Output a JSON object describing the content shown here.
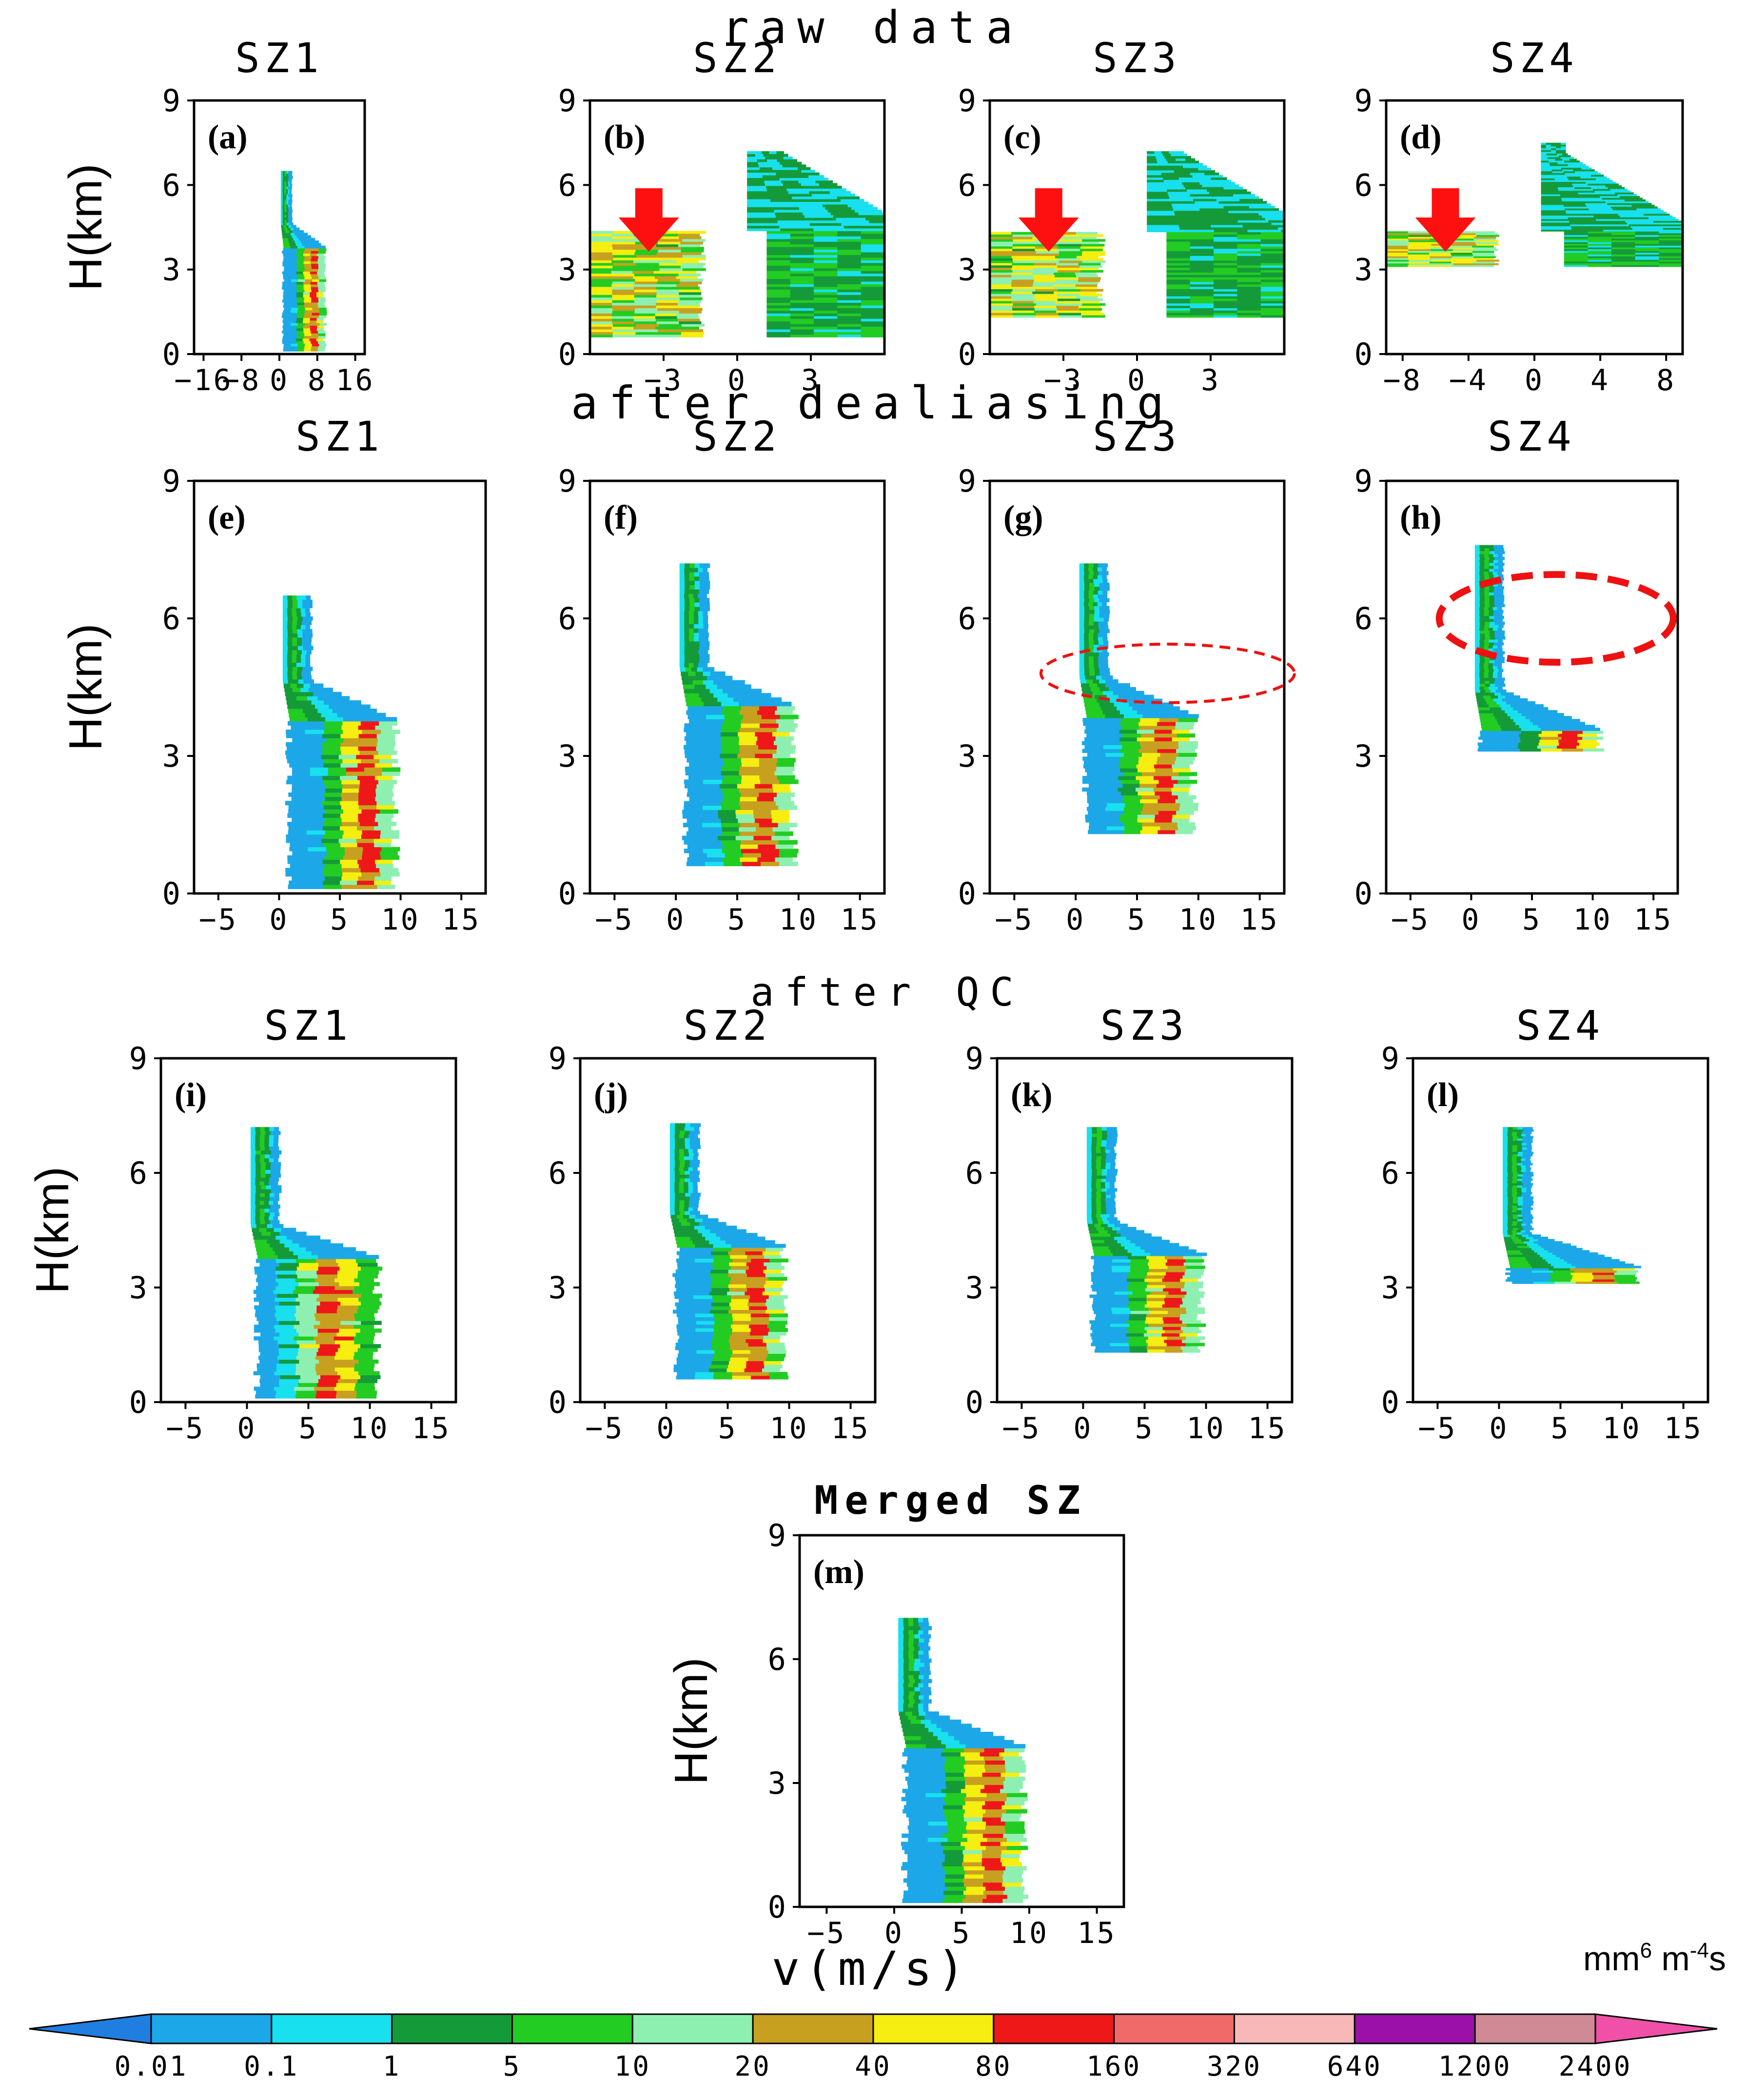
{
  "figure": {
    "x_axis_label": "v(m/s)",
    "y_axis_label": "H(km)"
  },
  "sections": [
    {
      "id": "raw",
      "title": "raw data"
    },
    {
      "id": "dealias",
      "title": "after dealiasing"
    },
    {
      "id": "qc",
      "title": "after QC"
    },
    {
      "id": "merged",
      "title": "Merged SZ"
    }
  ],
  "chart_data": [
    {
      "type": "heatmap",
      "panel": "(a)",
      "section": "raw data",
      "title": "SZ1",
      "ylabel": "H(km)",
      "xlim": [
        -18,
        18
      ],
      "ylim": [
        0,
        9
      ],
      "xticks": [
        -16,
        -8,
        0,
        8,
        16
      ],
      "yticks": [
        0,
        3,
        6,
        9
      ],
      "shape": "mono",
      "contour": {
        "Dmax": 9
      },
      "bottom_km": 0.1,
      "top_km": 6.5,
      "melt_km": 3.7,
      "v_top": 0.5,
      "v_fall": 7,
      "right_v": 10,
      "left_v": 0.5
    },
    {
      "type": "heatmap",
      "panel": "(b)",
      "section": "raw data",
      "title": "SZ2",
      "xlim": [
        -6,
        6
      ],
      "ylim": [
        0,
        9
      ],
      "xticks": [
        -3,
        0,
        3
      ],
      "yticks": [
        0,
        3,
        6,
        9
      ],
      "shape": "alias",
      "alias_km": 4.3,
      "Dmax": 6,
      "bottom_km": 0.6,
      "top_km": 7.2,
      "annotation": "red arrow"
    },
    {
      "type": "heatmap",
      "panel": "(c)",
      "section": "raw data",
      "title": "SZ3",
      "xlim": [
        -6,
        6
      ],
      "ylim": [
        0,
        9
      ],
      "xticks": [
        -3,
        0,
        3
      ],
      "yticks": [
        0,
        3,
        6,
        9
      ],
      "shape": "alias",
      "alias_km": 4.8,
      "Dmax": 6,
      "bottom_km": 1.3,
      "top_km": 7.2,
      "annotation": "red arrow"
    },
    {
      "type": "heatmap",
      "panel": "(d)",
      "section": "raw data",
      "title": "SZ4",
      "xlim": [
        -9,
        9
      ],
      "ylim": [
        0,
        9
      ],
      "xticks": [
        -8,
        -4,
        0,
        4,
        8
      ],
      "yticks": [
        0,
        3,
        6,
        9
      ],
      "shape": "alias",
      "alias_km": 6.5,
      "Dmax": 9,
      "bottom_km": 3.1,
      "top_km": 7.5,
      "annotation": "red arrow"
    },
    {
      "type": "heatmap",
      "panel": "(e)",
      "section": "after dealiasing",
      "title": "SZ1",
      "ylabel": "H(km)",
      "xlim": [
        -7,
        17
      ],
      "ylim": [
        0,
        9
      ],
      "xticks": [
        -5,
        0,
        5,
        10,
        15
      ],
      "yticks": [
        0,
        3,
        6,
        9
      ],
      "shape": "mono",
      "bottom_km": 0.1,
      "top_km": 6.5,
      "melt_km": 3.7,
      "v_top": 0.5,
      "v_fall": 7,
      "right_v": 10,
      "left_v": 0.5
    },
    {
      "type": "heatmap",
      "panel": "(f)",
      "section": "after dealiasing",
      "title": "SZ2",
      "xlim": [
        -7,
        17
      ],
      "ylim": [
        0,
        9
      ],
      "xticks": [
        -5,
        0,
        5,
        10,
        15
      ],
      "yticks": [
        0,
        3,
        6,
        9
      ],
      "shape": "mono",
      "bottom_km": 0.6,
      "top_km": 7.2,
      "melt_km": 4,
      "v_top": 0.5,
      "v_fall": 7,
      "right_v": 10,
      "left_v": 0.5
    },
    {
      "type": "heatmap",
      "panel": "(g)",
      "section": "after dealiasing",
      "title": "SZ3",
      "xlim": [
        -7,
        17
      ],
      "ylim": [
        0,
        9
      ],
      "xticks": [
        -5,
        0,
        5,
        10,
        15
      ],
      "yticks": [
        0,
        3,
        6,
        9
      ],
      "shape": "mono",
      "bottom_km": 1.3,
      "top_km": 7.2,
      "melt_km": 3.8,
      "v_top": 0.5,
      "v_fall": 7,
      "right_v": 10,
      "left_v": 0.5,
      "annotation": "red dashed ellipse"
    },
    {
      "type": "heatmap",
      "panel": "(h)",
      "section": "after dealiasing",
      "title": "SZ4",
      "xlim": [
        -7,
        17
      ],
      "ylim": [
        0,
        9
      ],
      "xticks": [
        -5,
        0,
        5,
        10,
        15
      ],
      "yticks": [
        0,
        3,
        6,
        9
      ],
      "shape": "mono",
      "bottom_km": 3.1,
      "top_km": 7.6,
      "melt_km": 3.5,
      "v_top": 0.5,
      "v_fall": 8,
      "right_v": 11,
      "left_v": 0.5,
      "annotation": "red dashed ellipse"
    },
    {
      "type": "heatmap",
      "panel": "(i)",
      "section": "after QC",
      "title": "SZ1",
      "ylabel": "H(km)",
      "xlim": [
        -7,
        17
      ],
      "ylim": [
        0,
        9
      ],
      "xticks": [
        -5,
        0,
        5,
        10,
        15
      ],
      "yticks": [
        0,
        3,
        6,
        9
      ],
      "shape": "mono",
      "bottom_km": 0.1,
      "top_km": 7.2,
      "melt_km": 3.7,
      "v_top": 0.5,
      "v_fall": 7,
      "right_v": 11,
      "left_v": 0.5
    },
    {
      "type": "heatmap",
      "panel": "(j)",
      "section": "after QC",
      "title": "SZ2",
      "xlim": [
        -7,
        17
      ],
      "ylim": [
        0,
        9
      ],
      "xticks": [
        -5,
        0,
        5,
        10,
        15
      ],
      "yticks": [
        0,
        3,
        6,
        9
      ],
      "shape": "mono",
      "bottom_km": 0.6,
      "top_km": 7.3,
      "melt_km": 4,
      "v_top": 0.5,
      "v_fall": 7,
      "right_v": 10,
      "left_v": 0.5
    },
    {
      "type": "heatmap",
      "panel": "(k)",
      "section": "after QC",
      "title": "SZ3",
      "xlim": [
        -7,
        17
      ],
      "ylim": [
        0,
        9
      ],
      "xticks": [
        -5,
        0,
        5,
        10,
        15
      ],
      "yticks": [
        0,
        3,
        6,
        9
      ],
      "shape": "mono",
      "bottom_km": 1.3,
      "top_km": 7.2,
      "melt_km": 3.8,
      "v_top": 0.5,
      "v_fall": 7,
      "right_v": 10,
      "left_v": 0.5
    },
    {
      "type": "heatmap",
      "panel": "(l)",
      "section": "after QC",
      "title": "SZ4",
      "xlim": [
        -7,
        17
      ],
      "ylim": [
        0,
        9
      ],
      "xticks": [
        -5,
        0,
        5,
        10,
        15
      ],
      "yticks": [
        0,
        3,
        6,
        9
      ],
      "shape": "mono",
      "bottom_km": 3.1,
      "top_km": 7.2,
      "melt_km": 3.5,
      "v_top": 0.5,
      "v_fall": 8,
      "right_v": 11.5,
      "left_v": 0.5
    },
    {
      "type": "heatmap",
      "panel": "(m)",
      "section": "Merged SZ",
      "title": "",
      "ylabel": "H(km)",
      "xlim": [
        -7,
        17
      ],
      "ylim": [
        0,
        9
      ],
      "xticks": [
        -5,
        0,
        5,
        10,
        15
      ],
      "yticks": [
        0,
        3,
        6,
        9
      ],
      "shape": "mono",
      "bottom_km": 0.1,
      "top_km": 7,
      "melt_km": 3.8,
      "v_top": 0.5,
      "v_fall": 7,
      "right_v": 10,
      "left_v": 0.5
    }
  ],
  "colorbar": {
    "unit_text": "mm",
    "unit_exp1": "6",
    "unit_mid": " m",
    "unit_exp2": "-4",
    "unit_end": "s",
    "labels": [
      "0.01",
      "0.1",
      "1",
      "5",
      "10",
      "20",
      "40",
      "80",
      "160",
      "320",
      "640",
      "1200",
      "2400"
    ],
    "colors": [
      "#1f7ee0",
      "#1ca8e8",
      "#18e0ee",
      "#159a3a",
      "#22cc22",
      "#8ef0b0",
      "#c8a020",
      "#f5ee10",
      "#ee1818",
      "#f06a6a",
      "#f8b8b8",
      "#9a10a8",
      "#d08a96",
      "#f050a8"
    ]
  }
}
